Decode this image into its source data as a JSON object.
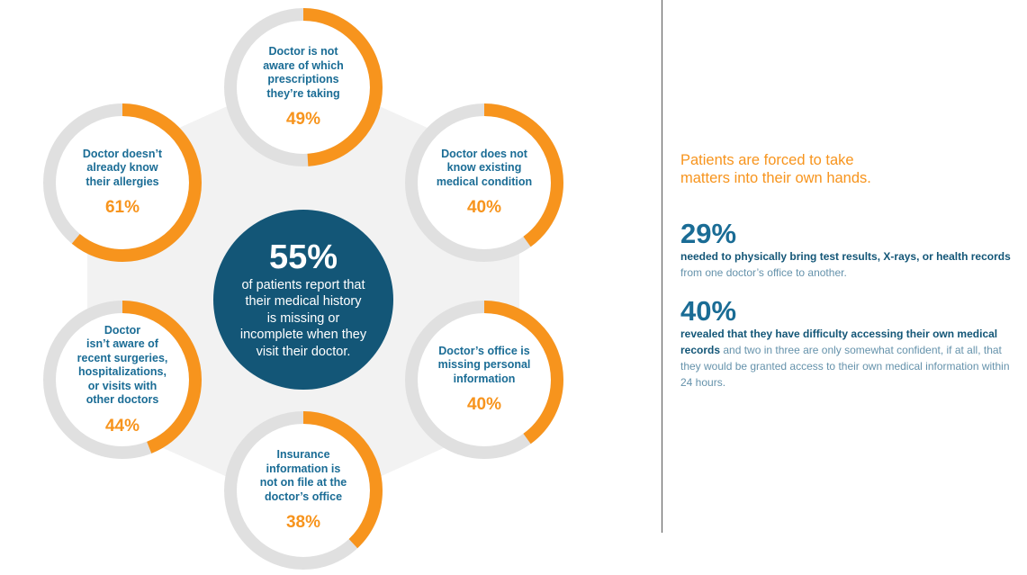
{
  "rings": [
    {
      "id": "prescriptions",
      "label": "Doctor is not\naware of which\nprescriptions\nthey’re taking",
      "pct_text": "49%",
      "fraction": 0.49
    },
    {
      "id": "existing-condition",
      "label": "Doctor does not\nknow existing\nmedical condition",
      "pct_text": "40%",
      "fraction": 0.4
    },
    {
      "id": "personal-info",
      "label": "Doctor’s office is\nmissing personal\ninformation",
      "pct_text": "40%",
      "fraction": 0.4
    },
    {
      "id": "insurance",
      "label": "Insurance\ninformation is\nnot on file at the\ndoctor’s office",
      "pct_text": "38%",
      "fraction": 0.38
    },
    {
      "id": "surgeries",
      "label": "Doctor\nisn’t aware of\nrecent surgeries,\nhospitalizations,\nor visits with\nother doctors",
      "pct_text": "44%",
      "fraction": 0.44
    },
    {
      "id": "allergies",
      "label": "Doctor doesn’t\nalready know\ntheir allergies",
      "pct_text": "61%",
      "fraction": 0.61
    }
  ],
  "center": {
    "pct": "55%",
    "text": "of patients report that\ntheir medical history\nis missing or\nincomplete when they\nvisit their doctor."
  },
  "sidebar": {
    "headline": "Patients are forced to take\nmatters into their own hands.",
    "stats": [
      {
        "pct": "29%",
        "bold": "needed to physically bring test results, X-rays, or health records",
        "rest": " from one doctor’s office to another."
      },
      {
        "pct": "40%",
        "bold": "revealed that they have difficulty accessing their own medical records",
        "rest": " and two in three are only somewhat confident, if at all, that they would be granted access to their own medical information within 24 hours."
      }
    ]
  },
  "colors": {
    "orange": "#f7941d",
    "ring_track": "#e0e0e0",
    "navy": "#135677",
    "blue_text": "#1a6c95",
    "hexagon": "#f2f2f2"
  }
}
